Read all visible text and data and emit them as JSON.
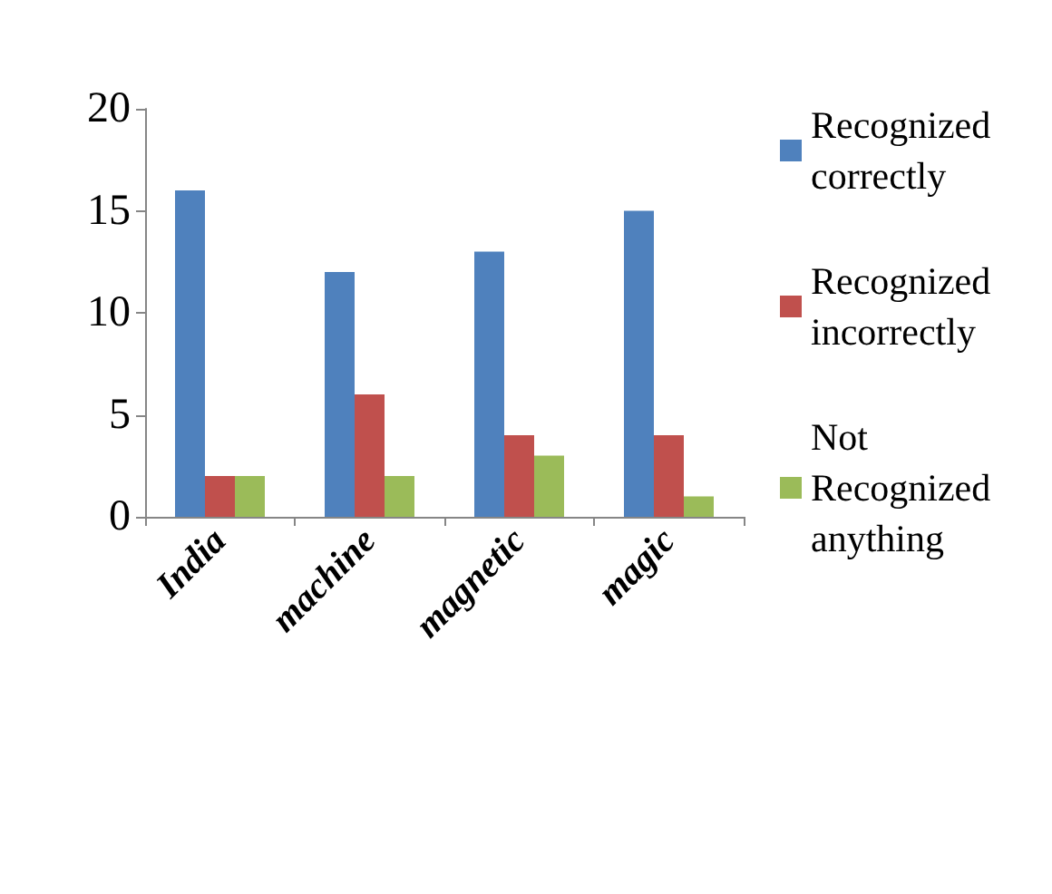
{
  "chart_data": {
    "type": "bar",
    "categories": [
      "India",
      "machine",
      "magnetic",
      "magic"
    ],
    "series": [
      {
        "name": "Recognized correctly",
        "color": "#4f81bd",
        "values": [
          16,
          12,
          13,
          15
        ]
      },
      {
        "name": "Recognized incorrectly",
        "color": "#c0504d",
        "values": [
          2,
          6,
          4,
          4
        ]
      },
      {
        "name": "Not Recognized anything",
        "color": "#9bbb59",
        "values": [
          2,
          2,
          3,
          1
        ]
      }
    ],
    "ylim": [
      0,
      20
    ],
    "yticks": [
      0,
      5,
      10,
      15,
      20
    ],
    "grid": false,
    "legend": "right"
  }
}
